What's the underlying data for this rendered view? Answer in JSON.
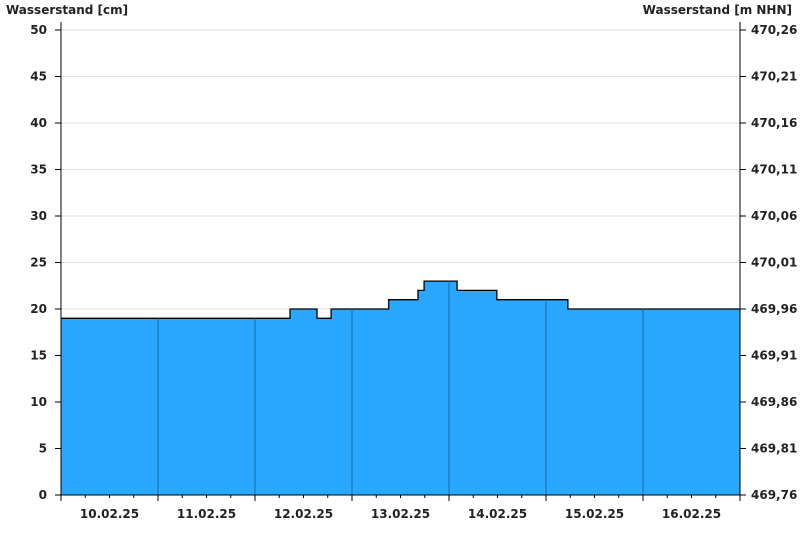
{
  "chart_data": {
    "type": "area",
    "step": true,
    "ylabel_left": "Wasserstand [cm]",
    "ylabel_right": "Wasserstand [m NHN]",
    "ylim": [
      0,
      50
    ],
    "yticks_left": [
      "0",
      "5",
      "10",
      "15",
      "20",
      "25",
      "30",
      "35",
      "40",
      "45",
      "50"
    ],
    "yticks_right": [
      "469,76",
      "469,81",
      "469,86",
      "469,91",
      "469,96",
      "470,01",
      "470,06",
      "470,11",
      "470,16",
      "470,21",
      "470,26"
    ],
    "xlim": [
      "10.02.25 00:00",
      "17.02.25 00:00"
    ],
    "xticks": [
      "10.02.25",
      "11.02.25",
      "12.02.25",
      "13.02.25",
      "14.02.25",
      "15.02.25",
      "16.02.25"
    ],
    "grid": "horizontal",
    "fill_color": "#2aa8ff",
    "line_color": "#000000",
    "points": [
      {
        "x": "10.02.25 00:00",
        "y": 19
      },
      {
        "x": "12.02.25 08:40",
        "y": 20
      },
      {
        "x": "12.02.25 15:20",
        "y": 19
      },
      {
        "x": "12.02.25 18:50",
        "y": 20
      },
      {
        "x": "13.02.25 09:05",
        "y": 21
      },
      {
        "x": "13.02.25 16:20",
        "y": 22
      },
      {
        "x": "13.02.25 17:50",
        "y": 23
      },
      {
        "x": "14.02.25 02:00",
        "y": 22
      },
      {
        "x": "14.02.25 11:50",
        "y": 21
      },
      {
        "x": "15.02.25 05:25",
        "y": 20
      },
      {
        "x": "17.02.25 00:00",
        "y": 20
      }
    ]
  }
}
